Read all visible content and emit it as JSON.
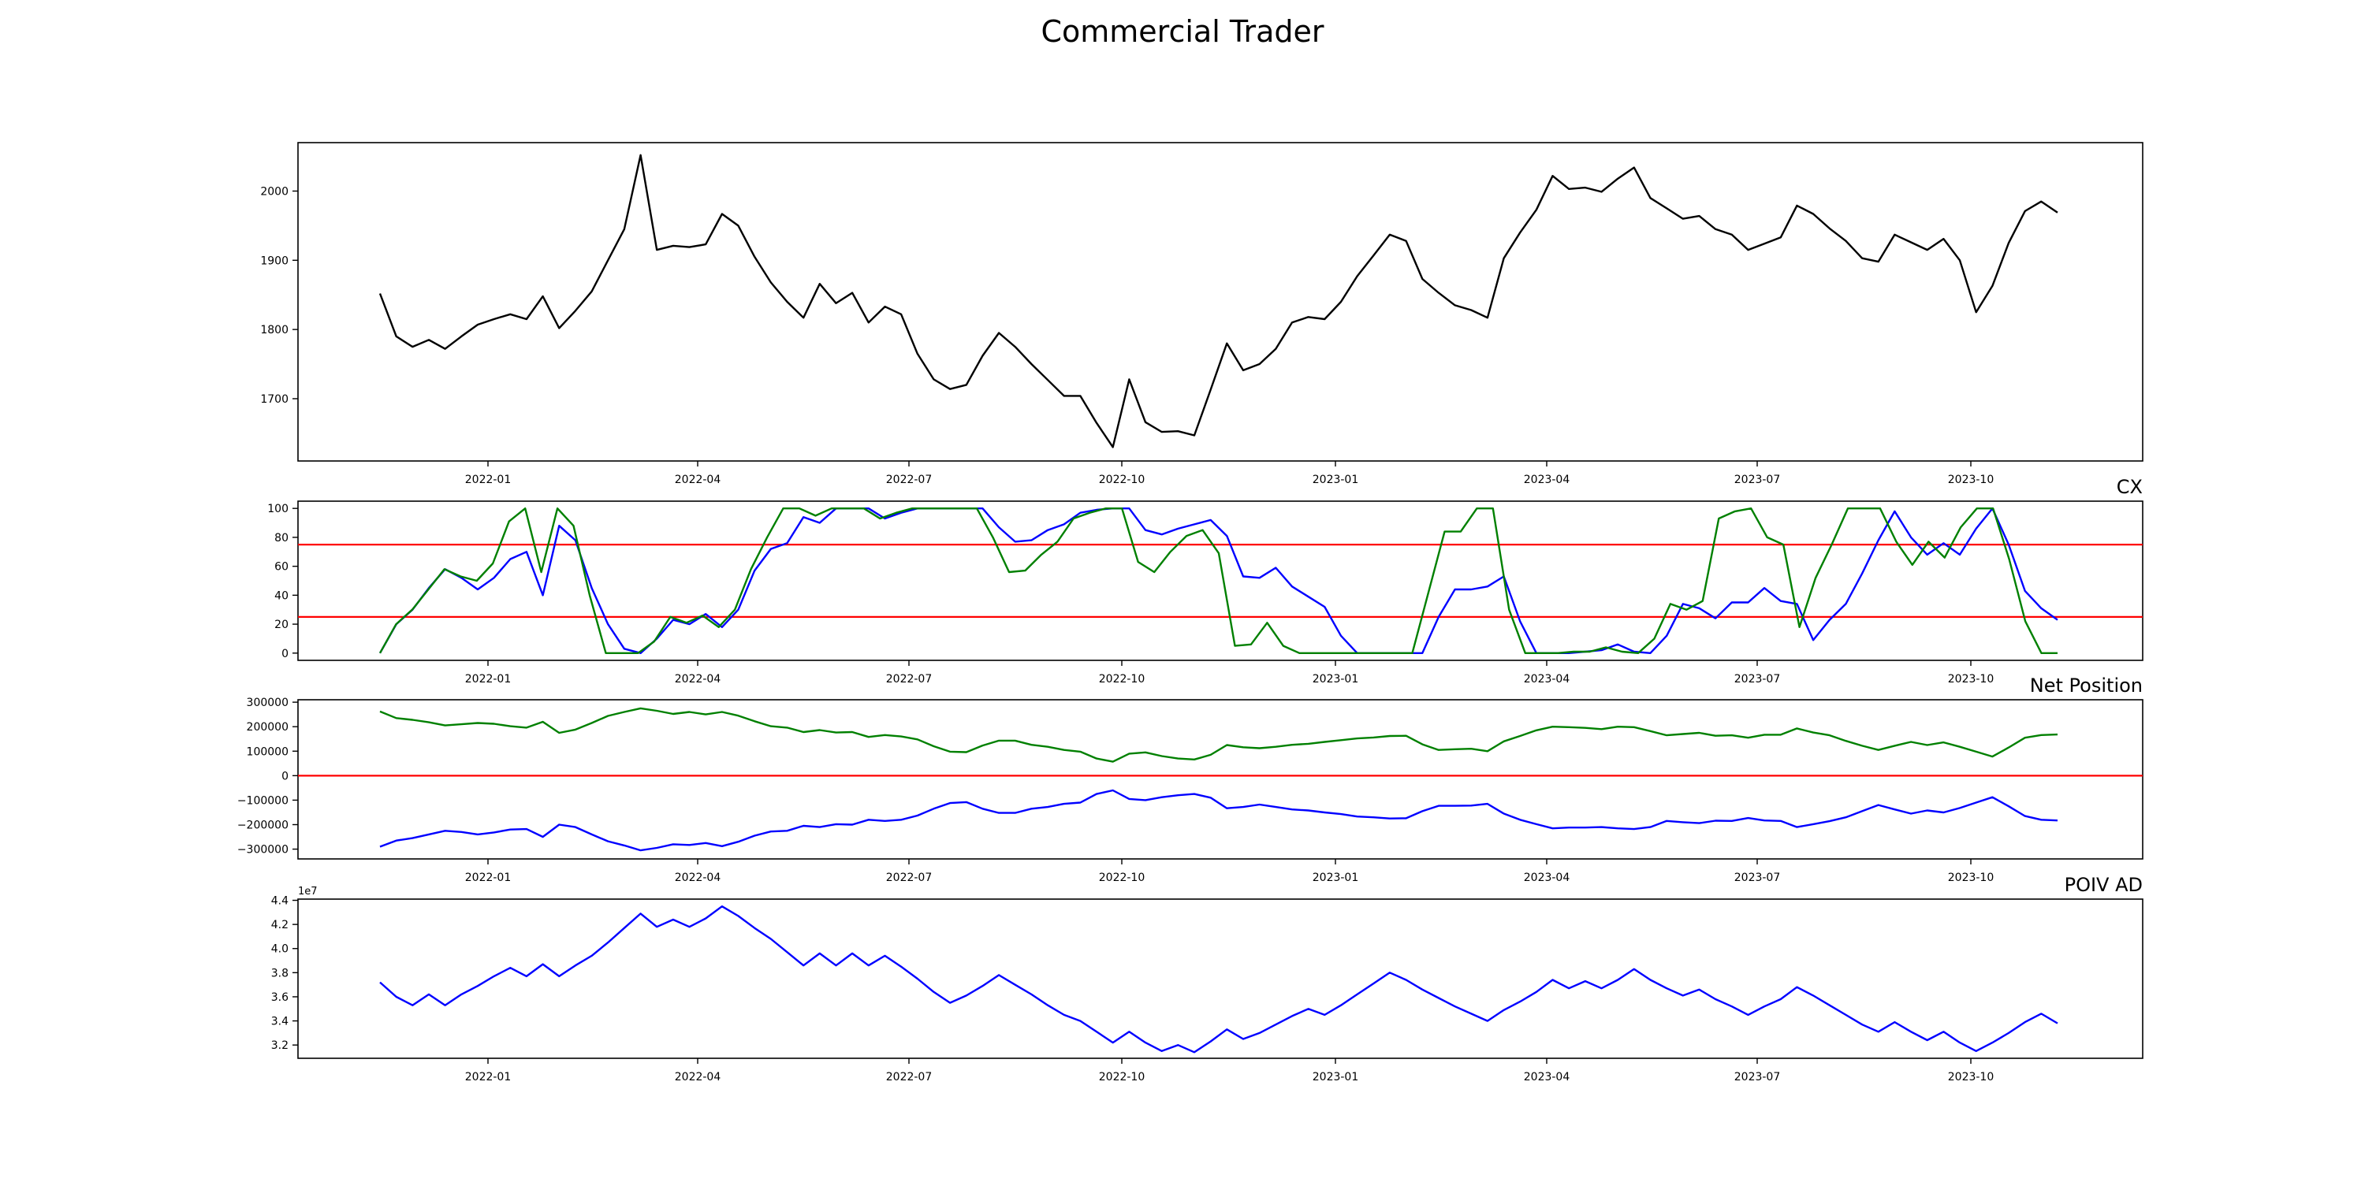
{
  "figure": {
    "title": "Commercial Trader"
  },
  "colors": {
    "price": "#000000",
    "blue": "#0000ff",
    "green": "#008000",
    "ref": "#ff0000"
  },
  "chart_data": [
    {
      "type": "line",
      "title": "",
      "xlabel": "",
      "ylabel": "",
      "x_ticks": [
        "2022-01",
        "2022-04",
        "2022-07",
        "2022-10",
        "2023-01",
        "2023-04",
        "2023-07",
        "2023-10"
      ],
      "y_ticks": [
        "1700",
        "1800",
        "1900",
        "2000"
      ],
      "ylim": [
        1610,
        2070
      ],
      "grid": false,
      "series": [
        {
          "color": "black",
          "values": [
            1852,
            1790,
            1775,
            1785,
            1772,
            1790,
            1807,
            1815,
            1822,
            1815,
            1848,
            1802,
            1827,
            1855,
            1900,
            1945,
            2052,
            1915,
            1921,
            1919,
            1923,
            1967,
            1950,
            1905,
            1868,
            1840,
            1817,
            1866,
            1838,
            1853,
            1810,
            1833,
            1822,
            1765,
            1728,
            1714,
            1720,
            1762,
            1795,
            1775,
            1750,
            1727,
            1704,
            1704,
            1665,
            1630,
            1728,
            1666,
            1652,
            1653,
            1647,
            1713,
            1780,
            1741,
            1750,
            1772,
            1810,
            1818,
            1815,
            1840,
            1877,
            1907,
            1937,
            1928,
            1873,
            1853,
            1835,
            1828,
            1817,
            1903,
            1940,
            1973,
            2022,
            2003,
            2005,
            1999,
            2018,
            2034,
            1990,
            1975,
            1960,
            1964,
            1945,
            1937,
            1915,
            1924,
            1933,
            1979,
            1967,
            1946,
            1928,
            1903,
            1898,
            1937,
            1926,
            1915,
            1931,
            1900,
            1825,
            1863,
            1925,
            1971,
            1985,
            1969
          ]
        }
      ]
    },
    {
      "type": "line",
      "title": "CX",
      "x_ticks": [
        "2022-01",
        "2022-04",
        "2022-07",
        "2022-10",
        "2023-01",
        "2023-04",
        "2023-07",
        "2023-10"
      ],
      "y_ticks": [
        "0",
        "20",
        "40",
        "60",
        "80",
        "100"
      ],
      "ylim": [
        -5,
        105
      ],
      "reference_lines": [
        25,
        75
      ],
      "series": [
        {
          "color": "blue",
          "values": [
            0,
            20,
            30,
            45,
            58,
            52,
            44,
            52,
            65,
            70,
            40,
            88,
            78,
            45,
            20,
            3,
            0,
            10,
            23,
            20,
            27,
            18,
            30,
            57,
            72,
            76,
            94,
            90,
            100,
            100,
            100,
            93,
            97,
            100,
            100,
            100,
            100,
            100,
            87,
            77,
            78,
            85,
            89,
            97,
            99,
            100,
            100,
            85,
            82,
            86,
            89,
            92,
            81,
            53,
            52,
            59,
            46,
            39,
            32,
            12,
            0,
            0,
            0,
            0,
            0,
            25,
            44,
            44,
            46,
            53,
            22,
            0,
            0,
            0,
            1,
            2,
            6,
            1,
            0,
            12,
            34,
            31,
            24,
            35,
            35,
            45,
            36,
            34,
            9,
            23,
            34,
            55,
            78,
            98,
            80,
            68,
            76,
            68,
            86,
            100,
            75,
            43,
            31,
            23
          ]
        },
        {
          "color": "green",
          "values": [
            0,
            20,
            30,
            44,
            58,
            53,
            50,
            62,
            91,
            100,
            56,
            100,
            88,
            40,
            0,
            0,
            0,
            8,
            25,
            21,
            26,
            18,
            30,
            58,
            80,
            100,
            100,
            95,
            100,
            100,
            100,
            93,
            97,
            100,
            100,
            100,
            100,
            100,
            80,
            56,
            57,
            68,
            77,
            93,
            97,
            100,
            100,
            63,
            56,
            70,
            81,
            85,
            69,
            5,
            6,
            21,
            5,
            0,
            0,
            0,
            0,
            0,
            0,
            0,
            0,
            42,
            84,
            84,
            100,
            100,
            30,
            0,
            0,
            0,
            1,
            1,
            4,
            1,
            0,
            10,
            34,
            30,
            36,
            93,
            98,
            100,
            80,
            75,
            18,
            52,
            75,
            100,
            100,
            100,
            77,
            61,
            77,
            66,
            87,
            100,
            100,
            65,
            22,
            0,
            0
          ]
        }
      ]
    },
    {
      "type": "line",
      "title": "Net Position",
      "x_ticks": [
        "2022-01",
        "2022-04",
        "2022-07",
        "2022-10",
        "2023-01",
        "2023-04",
        "2023-07",
        "2023-10"
      ],
      "y_ticks": [
        "−300000",
        "−200000",
        "−100000",
        "0",
        "100000",
        "200000",
        "300000"
      ],
      "ylim": [
        -340000,
        310000
      ],
      "reference_lines": [
        0
      ],
      "series": [
        {
          "color": "green",
          "values": [
            262000,
            235000,
            228000,
            218000,
            205000,
            210000,
            215000,
            212000,
            202000,
            196000,
            220000,
            175000,
            188000,
            215000,
            244000,
            260000,
            275000,
            265000,
            252000,
            260000,
            250000,
            260000,
            245000,
            222000,
            202000,
            196000,
            178000,
            186000,
            176000,
            178000,
            158000,
            166000,
            160000,
            148000,
            120000,
            98000,
            96000,
            123000,
            143000,
            143000,
            126000,
            118000,
            105000,
            98000,
            70000,
            57000,
            90000,
            95000,
            80000,
            70000,
            66000,
            85000,
            125000,
            116000,
            112000,
            118000,
            126000,
            130000,
            138000,
            145000,
            152000,
            156000,
            162000,
            163000,
            128000,
            105000,
            108000,
            110000,
            100000,
            140000,
            162000,
            185000,
            200000,
            198000,
            195000,
            190000,
            200000,
            198000,
            182000,
            165000,
            170000,
            175000,
            163000,
            165000,
            155000,
            167000,
            167000,
            193000,
            176000,
            165000,
            142000,
            122000,
            105000,
            122000,
            138000,
            125000,
            136000,
            118000,
            98000,
            78000,
            115000,
            155000,
            166000,
            168000
          ]
        },
        {
          "color": "blue",
          "values": [
            -290000,
            -265000,
            -255000,
            -240000,
            -225000,
            -230000,
            -240000,
            -232000,
            -220000,
            -218000,
            -250000,
            -200000,
            -210000,
            -240000,
            -268000,
            -285000,
            -305000,
            -295000,
            -280000,
            -283000,
            -275000,
            -288000,
            -270000,
            -245000,
            -228000,
            -225000,
            -205000,
            -210000,
            -198000,
            -200000,
            -180000,
            -185000,
            -180000,
            -163000,
            -135000,
            -112000,
            -108000,
            -135000,
            -152000,
            -152000,
            -135000,
            -128000,
            -115000,
            -110000,
            -75000,
            -60000,
            -95000,
            -100000,
            -88000,
            -80000,
            -75000,
            -90000,
            -133000,
            -128000,
            -118000,
            -128000,
            -138000,
            -142000,
            -150000,
            -157000,
            -167000,
            -170000,
            -175000,
            -174000,
            -145000,
            -123000,
            -123000,
            -122000,
            -115000,
            -155000,
            -180000,
            -198000,
            -215000,
            -212000,
            -212000,
            -210000,
            -215000,
            -218000,
            -210000,
            -185000,
            -190000,
            -194000,
            -184000,
            -185000,
            -173000,
            -183000,
            -185000,
            -210000,
            -198000,
            -186000,
            -170000,
            -145000,
            -120000,
            -138000,
            -155000,
            -142000,
            -150000,
            -132000,
            -110000,
            -88000,
            -125000,
            -165000,
            -180000,
            -183000
          ]
        }
      ]
    },
    {
      "type": "line",
      "title": "POIV AD",
      "x_ticks": [
        "2022-01",
        "2022-04",
        "2022-07",
        "2022-10",
        "2023-01",
        "2023-04",
        "2023-07",
        "2023-10"
      ],
      "y_ticks": [
        "3.2",
        "3.4",
        "3.6",
        "3.8",
        "4.0",
        "4.2",
        "4.4"
      ],
      "y_multiplier": "1e7",
      "ylim": [
        3.09,
        4.41
      ],
      "series": [
        {
          "color": "blue",
          "values": [
            3.72,
            3.6,
            3.53,
            3.62,
            3.53,
            3.62,
            3.69,
            3.77,
            3.84,
            3.77,
            3.87,
            3.77,
            3.86,
            3.94,
            4.05,
            4.17,
            4.29,
            4.18,
            4.24,
            4.18,
            4.25,
            4.35,
            4.27,
            4.17,
            4.08,
            3.97,
            3.86,
            3.96,
            3.86,
            3.96,
            3.86,
            3.94,
            3.85,
            3.75,
            3.64,
            3.55,
            3.61,
            3.69,
            3.78,
            3.7,
            3.62,
            3.53,
            3.45,
            3.4,
            3.31,
            3.22,
            3.31,
            3.22,
            3.15,
            3.2,
            3.14,
            3.23,
            3.33,
            3.25,
            3.3,
            3.37,
            3.44,
            3.5,
            3.45,
            3.53,
            3.62,
            3.71,
            3.8,
            3.74,
            3.66,
            3.59,
            3.52,
            3.46,
            3.4,
            3.49,
            3.56,
            3.64,
            3.74,
            3.67,
            3.73,
            3.67,
            3.74,
            3.83,
            3.74,
            3.67,
            3.61,
            3.66,
            3.58,
            3.52,
            3.45,
            3.52,
            3.58,
            3.68,
            3.61,
            3.53,
            3.45,
            3.37,
            3.31,
            3.39,
            3.31,
            3.24,
            3.31,
            3.22,
            3.15,
            3.22,
            3.3,
            3.39,
            3.46,
            3.38
          ]
        }
      ]
    }
  ]
}
